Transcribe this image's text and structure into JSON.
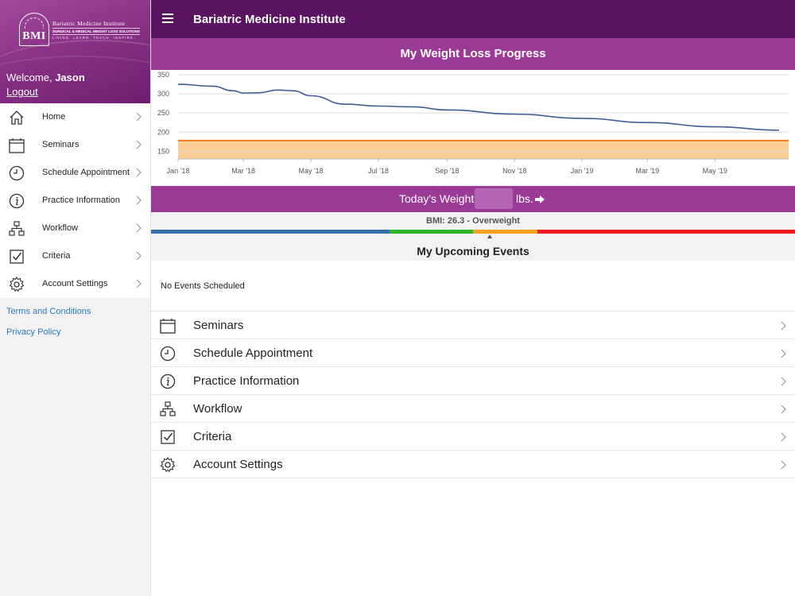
{
  "sidebar": {
    "logo": {
      "letters": "BMI",
      "line1": "Bariatric Medicine Institute",
      "line2": "SURGICAL & MEDICAL WEIGHT LOSS SOLUTIONS",
      "line3": "LIVING. LEARN. TEACH. INSPIRE."
    },
    "welcome_prefix": "Welcome,",
    "user_name": "Jason",
    "logout_label": "Logout",
    "items": [
      {
        "label": "Home",
        "icon": "home-icon"
      },
      {
        "label": "Seminars",
        "icon": "calendar-icon"
      },
      {
        "label": "Schedule Appointment",
        "icon": "clock-icon"
      },
      {
        "label": "Practice Information",
        "icon": "info-icon"
      },
      {
        "label": "Workflow",
        "icon": "workflow-icon"
      },
      {
        "label": "Criteria",
        "icon": "checkbox-icon"
      },
      {
        "label": "Account Settings",
        "icon": "gear-icon"
      }
    ],
    "links": [
      {
        "label": "Terms and Conditions"
      },
      {
        "label": "Privacy Policy"
      }
    ]
  },
  "header": {
    "title": "Bariatric Medicine Institute"
  },
  "progress": {
    "title": "My Weight Loss Progress"
  },
  "chart_data": {
    "type": "line",
    "title": "My Weight Loss Progress",
    "x_ticks": [
      "Jan '18",
      "Mar '18",
      "May '18",
      "Jul '18",
      "Sep '18",
      "Nov '18",
      "Jan '19",
      "Mar '19",
      "May '19"
    ],
    "y_ticks": [
      350,
      300,
      250,
      200,
      150
    ],
    "ylim": [
      130,
      350
    ],
    "x": [
      "2018-01-01",
      "2018-02-01",
      "2018-02-20",
      "2018-03-01",
      "2018-03-15",
      "2018-04-01",
      "2018-04-15",
      "2018-05-01",
      "2018-06-01",
      "2018-07-01",
      "2018-08-01",
      "2018-09-01",
      "2018-11-01",
      "2019-01-01",
      "2019-03-01",
      "2019-05-01",
      "2019-06-28"
    ],
    "series": [
      {
        "values": [
          325,
          320,
          308,
          302,
          303,
          310,
          308,
          295,
          273,
          268,
          266,
          258,
          247,
          236,
          225,
          214,
          205
        ]
      }
    ],
    "goal_band": [
      130,
      178
    ],
    "goal_line": 178,
    "grid": true,
    "colors": {
      "line": "#3f5c93",
      "band": "#fbc98a",
      "goal": "#f07b1f"
    }
  },
  "weight": {
    "label": "Today's Weight:",
    "value": "",
    "unit": "lbs."
  },
  "bmi": {
    "text": "BMI: 26.3 - Overweight",
    "scale": [
      {
        "color": "#3b6eac",
        "fraction": 0.37
      },
      {
        "color": "#2db52d",
        "fraction": 0.13
      },
      {
        "color": "#f5a11f",
        "fraction": 0.1
      },
      {
        "color": "#ec1c24",
        "fraction": 0.4
      }
    ]
  },
  "events": {
    "title": "My Upcoming Events",
    "empty": "No Events Scheduled"
  },
  "main_list": [
    {
      "label": "Seminars",
      "icon": "calendar-icon"
    },
    {
      "label": "Schedule Appointment",
      "icon": "clock-icon"
    },
    {
      "label": "Practice Information",
      "icon": "info-icon"
    },
    {
      "label": "Workflow",
      "icon": "workflow-icon"
    },
    {
      "label": "Criteria",
      "icon": "checkbox-icon"
    },
    {
      "label": "Account Settings",
      "icon": "gear-icon"
    }
  ]
}
